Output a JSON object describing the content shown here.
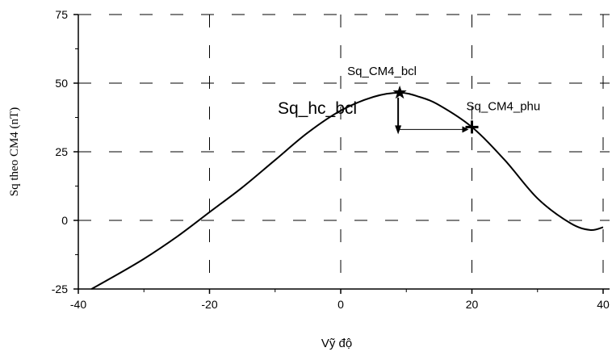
{
  "chart_data": {
    "type": "line",
    "xlabel": "Vỹ độ",
    "ylabel": "Sq theo CM4 (nT)",
    "xlim": [
      -40,
      40
    ],
    "ylim": [
      -25,
      75
    ],
    "x_ticks": [
      -40,
      -20,
      0,
      20,
      40
    ],
    "y_ticks": [
      -25,
      0,
      25,
      50,
      75
    ],
    "grid": true,
    "series": [
      {
        "x": [
          -38,
          -35,
          -30,
          -25,
          -20,
          -15,
          -10,
          -5,
          0,
          5,
          9,
          12,
          15,
          20,
          25,
          30,
          35,
          38,
          40
        ],
        "y": [
          -25,
          -21,
          -14,
          -6,
          3,
          12,
          22,
          32,
          40,
          45,
          46.5,
          45,
          42,
          34,
          22,
          8,
          -1,
          -3.5,
          -2.5
        ]
      }
    ],
    "annotations": {
      "point_bcl": {
        "label": "Sq_CM4_bcl",
        "x": 9,
        "y": 46.5
      },
      "point_phu": {
        "label": "Sq_CM4_phu",
        "x": 20,
        "y": 34
      },
      "hc_label": "Sq_hc_bcl"
    }
  }
}
